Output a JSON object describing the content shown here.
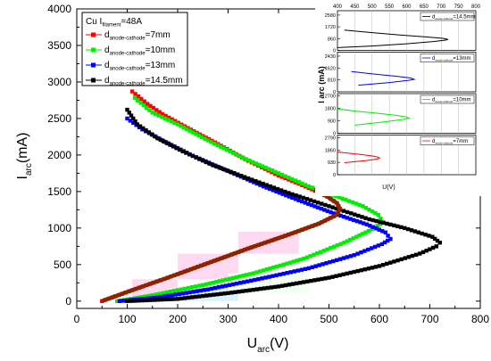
{
  "chart_data": {
    "type": "line",
    "xlabel": "U",
    "xlabel_sub": "arc",
    "xlabel_unit": "(V)",
    "ylabel": "I",
    "ylabel_sub": "arc",
    "ylabel_unit": "(mA)",
    "xlim": [
      0,
      800
    ],
    "ylim": [
      -100,
      4000
    ],
    "xticks": [
      0,
      100,
      200,
      300,
      400,
      500,
      600,
      700,
      800
    ],
    "yticks": [
      0,
      500,
      1000,
      1500,
      2000,
      2500,
      3000,
      3500,
      4000
    ],
    "legend": {
      "position": "top-left",
      "header": {
        "prefix": "Cu  I",
        "sub": "filament",
        "suffix": "=48A"
      },
      "entries": [
        {
          "prefix": "d",
          "sub": "anode-cathode",
          "suffix": "=7mm",
          "color": "#ff0000"
        },
        {
          "prefix": "d",
          "sub": "anode-cathode",
          "suffix": "=10mm",
          "color": "#00ee00"
        },
        {
          "prefix": "d",
          "sub": "anode-cathode",
          "suffix": "=13mm",
          "color": "#0000ff"
        },
        {
          "prefix": "d",
          "sub": "anode-cathode",
          "suffix": "=14.5mm",
          "color": "#000000"
        }
      ]
    },
    "series": [
      {
        "name": "d anode-cathode =7mm",
        "color": "#ff0000",
        "points": [
          [
            50,
            0
          ],
          [
            110,
            150
          ],
          [
            180,
            320
          ],
          [
            260,
            520
          ],
          [
            340,
            720
          ],
          [
            420,
            910
          ],
          [
            480,
            1060
          ],
          [
            515,
            1180
          ],
          [
            522,
            1260
          ],
          [
            516,
            1340
          ],
          [
            497,
            1430
          ],
          [
            460,
            1550
          ],
          [
            400,
            1720
          ],
          [
            340,
            1920
          ],
          [
            280,
            2150
          ],
          [
            220,
            2370
          ],
          [
            170,
            2560
          ],
          [
            140,
            2700
          ],
          [
            110,
            2870
          ]
        ]
      },
      {
        "name": "d anode-cathode =10mm",
        "color": "#00ee00",
        "points": [
          [
            80,
            0
          ],
          [
            150,
            80
          ],
          [
            250,
            220
          ],
          [
            350,
            380
          ],
          [
            450,
            580
          ],
          [
            530,
            800
          ],
          [
            585,
            980
          ],
          [
            607,
            1080
          ],
          [
            598,
            1180
          ],
          [
            567,
            1300
          ],
          [
            520,
            1420
          ],
          [
            460,
            1570
          ],
          [
            400,
            1750
          ],
          [
            330,
            1960
          ],
          [
            260,
            2200
          ],
          [
            200,
            2420
          ],
          [
            150,
            2580
          ],
          [
            115,
            2780
          ]
        ]
      },
      {
        "name": "d anode-cathode =13mm",
        "color": "#0000ff",
        "points": [
          [
            85,
            0
          ],
          [
            160,
            50
          ],
          [
            260,
            160
          ],
          [
            360,
            300
          ],
          [
            460,
            450
          ],
          [
            550,
            630
          ],
          [
            605,
            780
          ],
          [
            622,
            850
          ],
          [
            612,
            940
          ],
          [
            575,
            1050
          ],
          [
            510,
            1200
          ],
          [
            440,
            1380
          ],
          [
            370,
            1570
          ],
          [
            300,
            1780
          ],
          [
            230,
            1990
          ],
          [
            170,
            2200
          ],
          [
            130,
            2350
          ],
          [
            100,
            2500
          ]
        ]
      },
      {
        "name": "d anode-cathode =14.5mm",
        "color": "#000000",
        "points": [
          [
            100,
            0
          ],
          [
            200,
            30
          ],
          [
            300,
            110
          ],
          [
            400,
            200
          ],
          [
            500,
            320
          ],
          [
            600,
            480
          ],
          [
            680,
            650
          ],
          [
            713,
            750
          ],
          [
            720,
            800
          ],
          [
            705,
            880
          ],
          [
            650,
            1000
          ],
          [
            580,
            1120
          ],
          [
            500,
            1300
          ],
          [
            420,
            1480
          ],
          [
            340,
            1680
          ],
          [
            270,
            1860
          ],
          [
            210,
            2050
          ],
          [
            160,
            2230
          ],
          [
            120,
            2420
          ],
          [
            100,
            2620
          ]
        ]
      },
      {
        "name": "",
        "color": "#8b2500",
        "points": [
          [
            50,
            0
          ],
          [
            110,
            150
          ],
          [
            180,
            320
          ],
          [
            260,
            520
          ],
          [
            340,
            720
          ],
          [
            420,
            910
          ],
          [
            480,
            1060
          ],
          [
            515,
            1180
          ],
          [
            522,
            1260
          ],
          [
            516,
            1340
          ],
          [
            497,
            1430
          ],
          [
            470,
            1520
          ]
        ]
      }
    ],
    "inset": {
      "ylabel": "I arc (mA)",
      "xlabel": "U(V)",
      "xlim": [
        400,
        800
      ],
      "xticks": [
        400,
        450,
        500,
        550,
        600,
        650,
        700,
        750,
        800
      ],
      "panels": [
        {
          "name": "14.5mm",
          "legend": {
            "prefix": "d",
            "sub": "anode-cathode",
            "suffix": "=14.5mm"
          },
          "color": "#000000",
          "yticks": [
            0,
            860,
            1720,
            2580
          ],
          "ymax": 2900,
          "peak_x": 715,
          "peak_y": 800
        },
        {
          "name": "13mm",
          "legend": {
            "prefix": "d",
            "sub": "anode-cathode",
            "suffix": "=13mm"
          },
          "color": "#0000ff",
          "yticks": [
            0,
            810,
            1620,
            2430
          ],
          "ymax": 2700,
          "peak_x": 622,
          "peak_y": 850
        },
        {
          "name": "10mm",
          "legend": {
            "prefix": "d",
            "sub": "anode-cathode",
            "suffix": "=10mm"
          },
          "color": "#00ee00",
          "yticks": [
            0,
            900,
            1800,
            2700
          ],
          "ymax": 2850,
          "peak_x": 607,
          "peak_y": 1080
        },
        {
          "name": "7mm",
          "legend": {
            "prefix": "d",
            "sub": "anode-cathode",
            "suffix": "=7mm"
          },
          "color": "#ff0000",
          "yticks": [
            0,
            930,
            1860,
            2790
          ],
          "ymax": 3000,
          "peak_x": 522,
          "peak_y": 1260
        }
      ]
    }
  }
}
